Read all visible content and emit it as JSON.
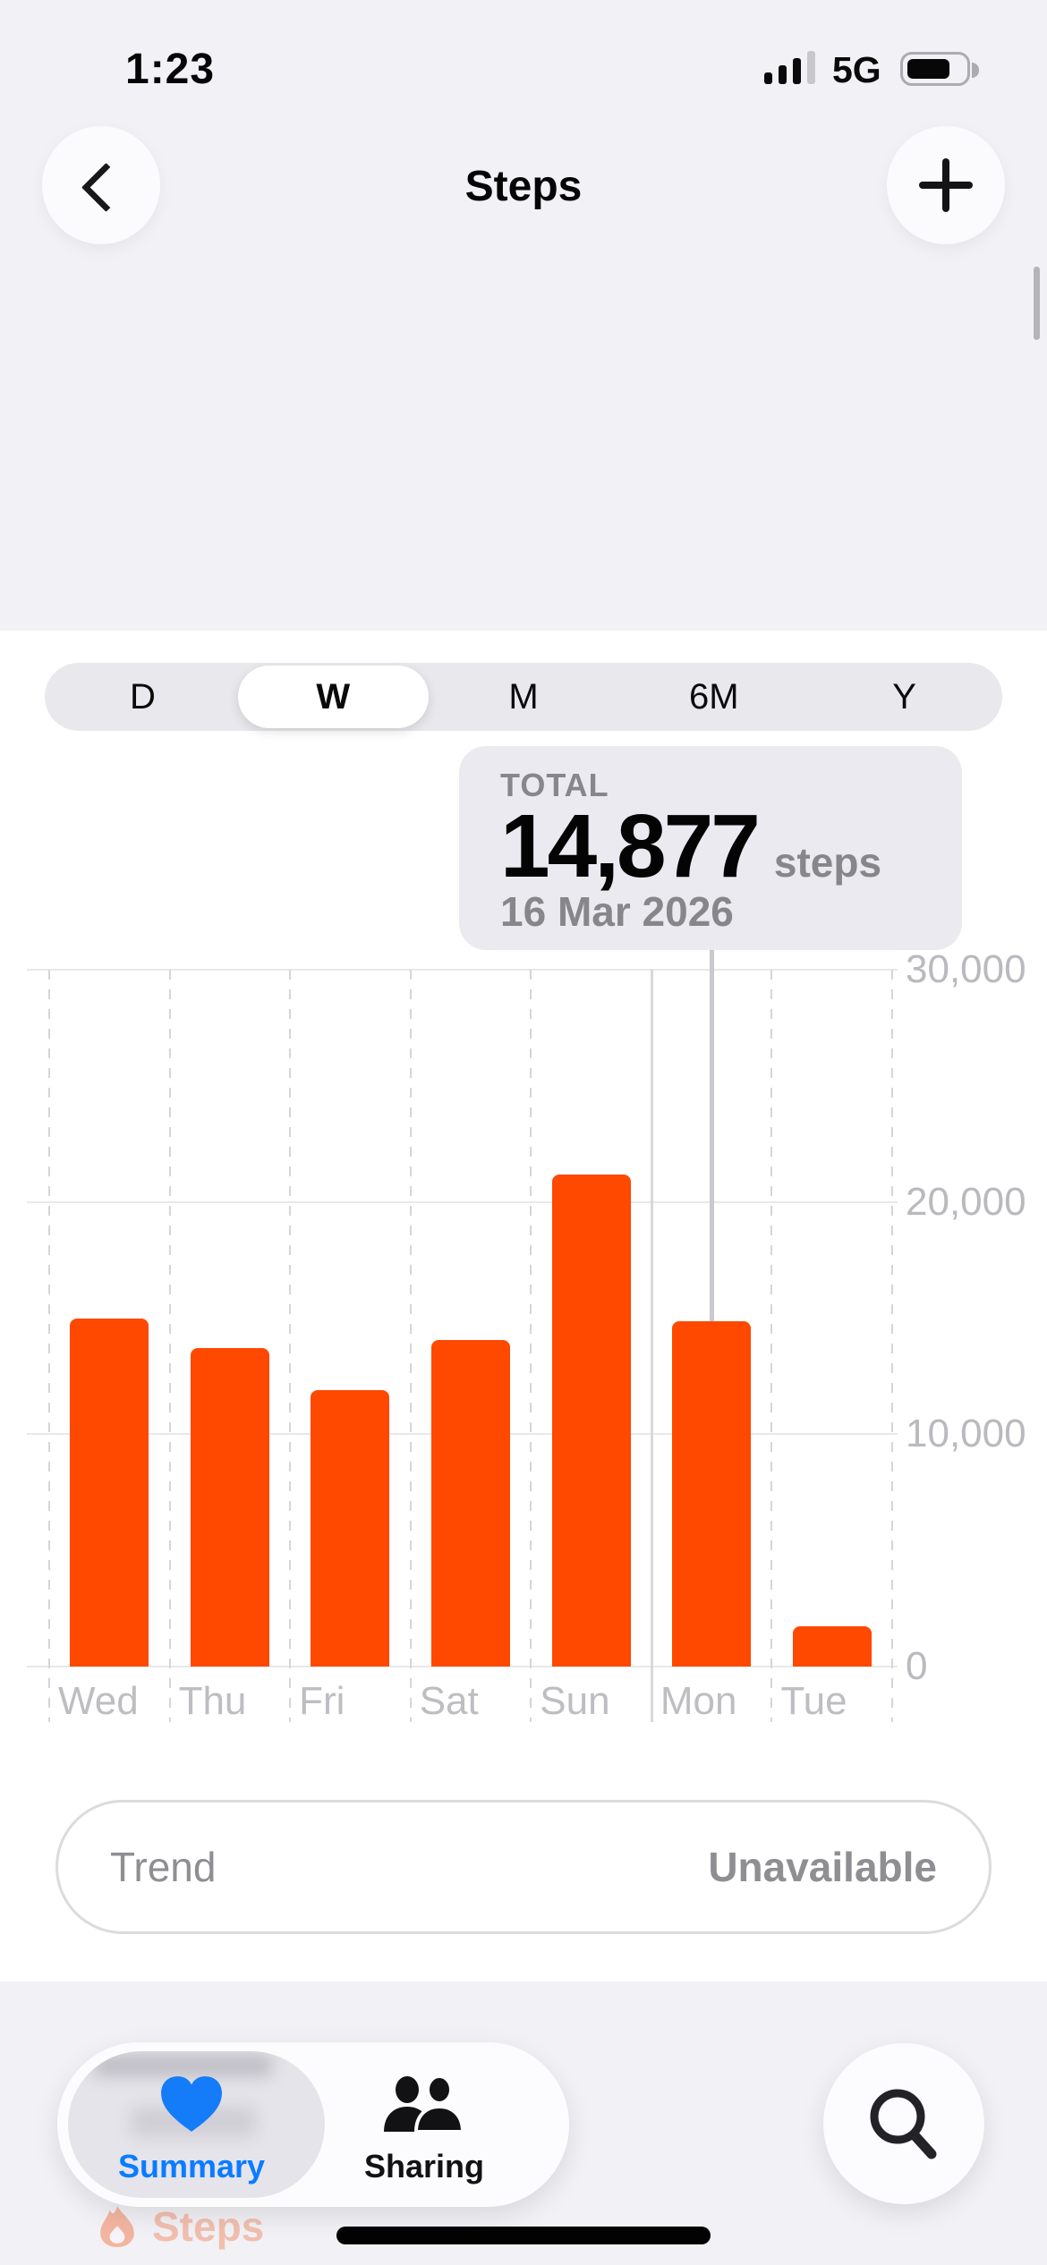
{
  "status_bar": {
    "time": "1:23",
    "network": "5G",
    "signal_bars_filled": 3,
    "signal_bars_total": 4,
    "battery_fill_ratio": 0.72
  },
  "header": {
    "title": "Steps",
    "back_icon": "chevron-left-icon",
    "add_icon": "plus-icon"
  },
  "range_selector": {
    "options": [
      "D",
      "W",
      "M",
      "6M",
      "Y"
    ],
    "selected": "W"
  },
  "tooltip": {
    "label": "TOTAL",
    "value": "14,877",
    "unit": "steps",
    "date": "16 Mar 2026"
  },
  "chart_data": {
    "type": "bar",
    "title": "",
    "xlabel": "",
    "ylabel": "steps",
    "categories": [
      "Wed",
      "Thu",
      "Fri",
      "Sat",
      "Sun",
      "Mon",
      "Tue"
    ],
    "values": [
      15000,
      13700,
      11900,
      14050,
      21200,
      14877,
      1750
    ],
    "highlighted_index": 5,
    "highlighted_label": "Mon",
    "highlighted_value": 14877,
    "ylim": [
      0,
      30000
    ],
    "yticks": [
      0,
      10000,
      20000,
      30000
    ],
    "ytick_labels": [
      "0",
      "10,000",
      "20,000",
      "30,000"
    ],
    "yaxis_side": "right",
    "grid": true,
    "legend": false,
    "bar_color": "#FF4800"
  },
  "trend": {
    "label": "Trend",
    "value": "Unavailable"
  },
  "tab_bar": {
    "tabs": [
      {
        "label": "Summary",
        "icon": "heart-icon",
        "active": true
      },
      {
        "label": "Sharing",
        "icon": "people-icon",
        "active": false
      }
    ],
    "search_icon": "search-icon"
  },
  "background_sheet": {
    "label": "Steps",
    "icon": "flame-icon"
  },
  "colors": {
    "accent": "#FF4800",
    "blue": "#0A7CFF",
    "background": "#F2F1F6",
    "sheet": "#FFFFFF",
    "tooltip_bg": "#EBEAF0",
    "gray_text": "#8E8E93",
    "tick_text": "#B9B9BE",
    "gridline": "#E8E8EA",
    "peek_text": "#F2BFAE"
  }
}
